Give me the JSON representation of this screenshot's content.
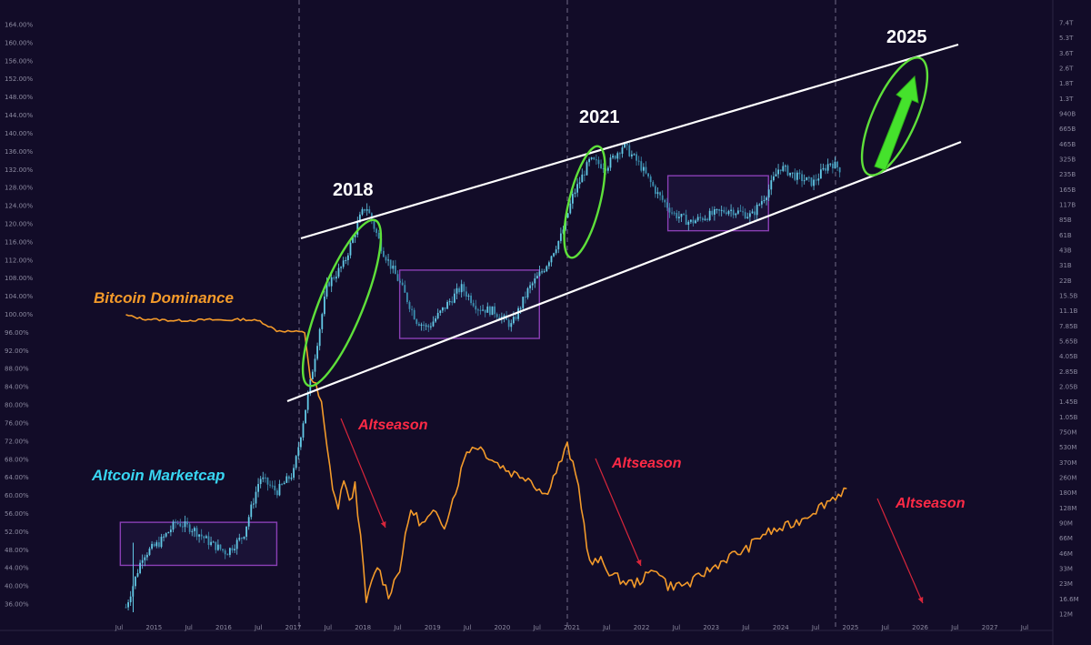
{
  "chart_data": {
    "type": "line",
    "colors": {
      "background": "#120c28",
      "dominance": "#f39a2a",
      "marketcap_up": "#63c9e6",
      "marketcap_down": "#3b8fb0",
      "channel": "#ffffff",
      "ellipse": "#5ee03a",
      "arrow": "#44e12b",
      "box": "#8a3fb5",
      "altseason": "#ff2a46",
      "dominance_label": "#f39a2a",
      "marketcap_label": "#38d6f2",
      "grid": "#3a3555"
    },
    "left_axis": {
      "ticks": [
        "164.00%",
        "160.00%",
        "156.00%",
        "152.00%",
        "148.00%",
        "144.00%",
        "140.00%",
        "136.00%",
        "132.00%",
        "128.00%",
        "124.00%",
        "120.00%",
        "116.00%",
        "112.00%",
        "108.00%",
        "104.00%",
        "100.00%",
        "96.00%",
        "92.00%",
        "88.00%",
        "84.00%",
        "80.00%",
        "76.00%",
        "72.00%",
        "68.00%",
        "64.00%",
        "60.00%",
        "56.00%",
        "52.00%",
        "48.00%",
        "44.00%",
        "40.00%",
        "36.00%"
      ]
    },
    "right_axis": {
      "ticks": [
        "7.4T",
        "5.3T",
        "3.6T",
        "2.6T",
        "1.8T",
        "1.3T",
        "940B",
        "665B",
        "465B",
        "325B",
        "235B",
        "165B",
        "117B",
        "85B",
        "61B",
        "43B",
        "31B",
        "22B",
        "15.5B",
        "11.1B",
        "7.85B",
        "5.65B",
        "4.05B",
        "2.85B",
        "2.05B",
        "1.45B",
        "1.05B",
        "750M",
        "530M",
        "370M",
        "260M",
        "180M",
        "128M",
        "90M",
        "66M",
        "46M",
        "33M",
        "23M",
        "16.6M",
        "12M"
      ]
    },
    "x_ticks": [
      "Jul",
      "2015",
      "Jul",
      "2016",
      "Jul",
      "2017",
      "Jul",
      "2018",
      "Jul",
      "2019",
      "Jul",
      "2020",
      "Jul",
      "2021",
      "Jul",
      "2022",
      "Jul",
      "2023",
      "Jul",
      "2024",
      "Jul",
      "2025",
      "Jul",
      "2026",
      "Jul",
      "2027",
      "Jul"
    ],
    "series": [
      {
        "name": "Bitcoin Dominance",
        "values": [
          [
            "2014-06",
            99.8
          ],
          [
            "2014-09",
            99.0
          ],
          [
            "2014-12",
            98.8
          ],
          [
            "2015-03",
            98.6
          ],
          [
            "2015-06",
            98.7
          ],
          [
            "2015-09",
            98.8
          ],
          [
            "2015-12",
            98.7
          ],
          [
            "2016-03",
            98.9
          ],
          [
            "2016-06",
            98.5
          ],
          [
            "2016-09",
            96.4
          ],
          [
            "2016-12",
            96.2
          ],
          [
            "2017-02",
            96.0
          ],
          [
            "2017-03",
            86.0
          ],
          [
            "2017-04",
            84.0
          ],
          [
            "2017-05",
            80.0
          ],
          [
            "2017-06",
            70.2
          ],
          [
            "2017-07",
            62.0
          ],
          [
            "2017-08",
            57.0
          ],
          [
            "2017-09",
            64.0
          ],
          [
            "2017-10",
            58.0
          ],
          [
            "2017-11",
            62.5
          ],
          [
            "2017-12",
            50.5
          ],
          [
            "2018-01",
            36.5
          ],
          [
            "2018-03",
            44.5
          ],
          [
            "2018-05",
            38.0
          ],
          [
            "2018-07",
            44.0
          ],
          [
            "2018-09",
            57.0
          ],
          [
            "2018-11",
            53.5
          ],
          [
            "2019-01",
            56.0
          ],
          [
            "2019-03",
            53.5
          ],
          [
            "2019-05",
            61.0
          ],
          [
            "2019-07",
            70.0
          ],
          [
            "2019-09",
            71.0
          ],
          [
            "2019-12",
            67.5
          ],
          [
            "2020-03",
            65.0
          ],
          [
            "2020-06",
            64.0
          ],
          [
            "2020-09",
            60.0
          ],
          [
            "2020-12",
            68.0
          ],
          [
            "2021-01",
            71.0
          ],
          [
            "2021-03",
            62.0
          ],
          [
            "2021-05",
            45.0
          ],
          [
            "2021-07",
            45.5
          ],
          [
            "2021-09",
            42.5
          ],
          [
            "2021-11",
            41.0
          ],
          [
            "2022-01",
            40.5
          ],
          [
            "2022-03",
            42.0
          ],
          [
            "2022-05",
            44.0
          ],
          [
            "2022-07",
            40.0
          ],
          [
            "2022-09",
            40.2
          ],
          [
            "2022-11",
            40.5
          ],
          [
            "2023-01",
            42.5
          ],
          [
            "2023-03",
            44.0
          ],
          [
            "2023-06",
            46.5
          ],
          [
            "2023-09",
            48.0
          ],
          [
            "2023-12",
            51.5
          ],
          [
            "2024-03",
            52.5
          ],
          [
            "2024-06",
            54.0
          ],
          [
            "2024-09",
            56.5
          ],
          [
            "2024-12",
            59.0
          ],
          [
            "2025-03",
            61.5
          ]
        ]
      },
      {
        "name": "Altcoin Marketcap",
        "values": [
          [
            "2014-06",
            14000000.0
          ],
          [
            "2014-09",
            45000000.0
          ],
          [
            "2014-12",
            60000000.0
          ],
          [
            "2015-03",
            95000000.0
          ],
          [
            "2015-06",
            82000000.0
          ],
          [
            "2015-09",
            60000000.0
          ],
          [
            "2015-12",
            48000000.0
          ],
          [
            "2016-03",
            70000000.0
          ],
          [
            "2016-06",
            260000000.0
          ],
          [
            "2016-09",
            190000000.0
          ],
          [
            "2016-12",
            290000000.0
          ],
          [
            "2017-03",
            2200000000.0
          ],
          [
            "2017-06",
            20000000000.0
          ],
          [
            "2017-09",
            32000000000.0
          ],
          [
            "2017-12",
            95000000000.0
          ],
          [
            "2018-01",
            120000000000.0
          ],
          [
            "2018-04",
            43000000000.0
          ],
          [
            "2018-07",
            21000000000.0
          ],
          [
            "2018-10",
            9000000000.0
          ],
          [
            "2018-12",
            7600000000.0
          ],
          [
            "2019-03",
            12000000000.0
          ],
          [
            "2019-06",
            19000000000.0
          ],
          [
            "2019-09",
            12000000000.0
          ],
          [
            "2019-12",
            11000000000.0
          ],
          [
            "2020-03",
            8000000000.0
          ],
          [
            "2020-06",
            18000000000.0
          ],
          [
            "2020-09",
            30000000000.0
          ],
          [
            "2020-12",
            62000000000.0
          ],
          [
            "2021-02",
            150000000000.0
          ],
          [
            "2021-05",
            330000000000.0
          ],
          [
            "2021-08",
            290000000000.0
          ],
          [
            "2021-11",
            470000000000.0
          ],
          [
            "2022-02",
            300000000000.0
          ],
          [
            "2022-05",
            160000000000.0
          ],
          [
            "2022-08",
            100000000000.0
          ],
          [
            "2022-11",
            82000000000.0
          ],
          [
            "2023-02",
            95000000000.0
          ],
          [
            "2023-06",
            110000000000.0
          ],
          [
            "2023-10",
            95000000000.0
          ],
          [
            "2024-01",
            170000000000.0
          ],
          [
            "2024-03",
            290000000000.0
          ],
          [
            "2024-06",
            230000000000.0
          ],
          [
            "2024-09",
            200000000000.0
          ],
          [
            "2024-12",
            320000000000.0
          ],
          [
            "2025-02",
            270000000000.0
          ]
        ]
      }
    ],
    "annotations": {
      "dominance_label": "Bitcoin Dominance",
      "marketcap_label": "Altcoin Marketcap",
      "year_2018": "2018",
      "year_2021": "2021",
      "year_2025": "2025",
      "altseason_1": "Altseason",
      "altseason_2": "Altseason",
      "altseason_3": "Altseason"
    },
    "grid": false,
    "legend": "none"
  }
}
